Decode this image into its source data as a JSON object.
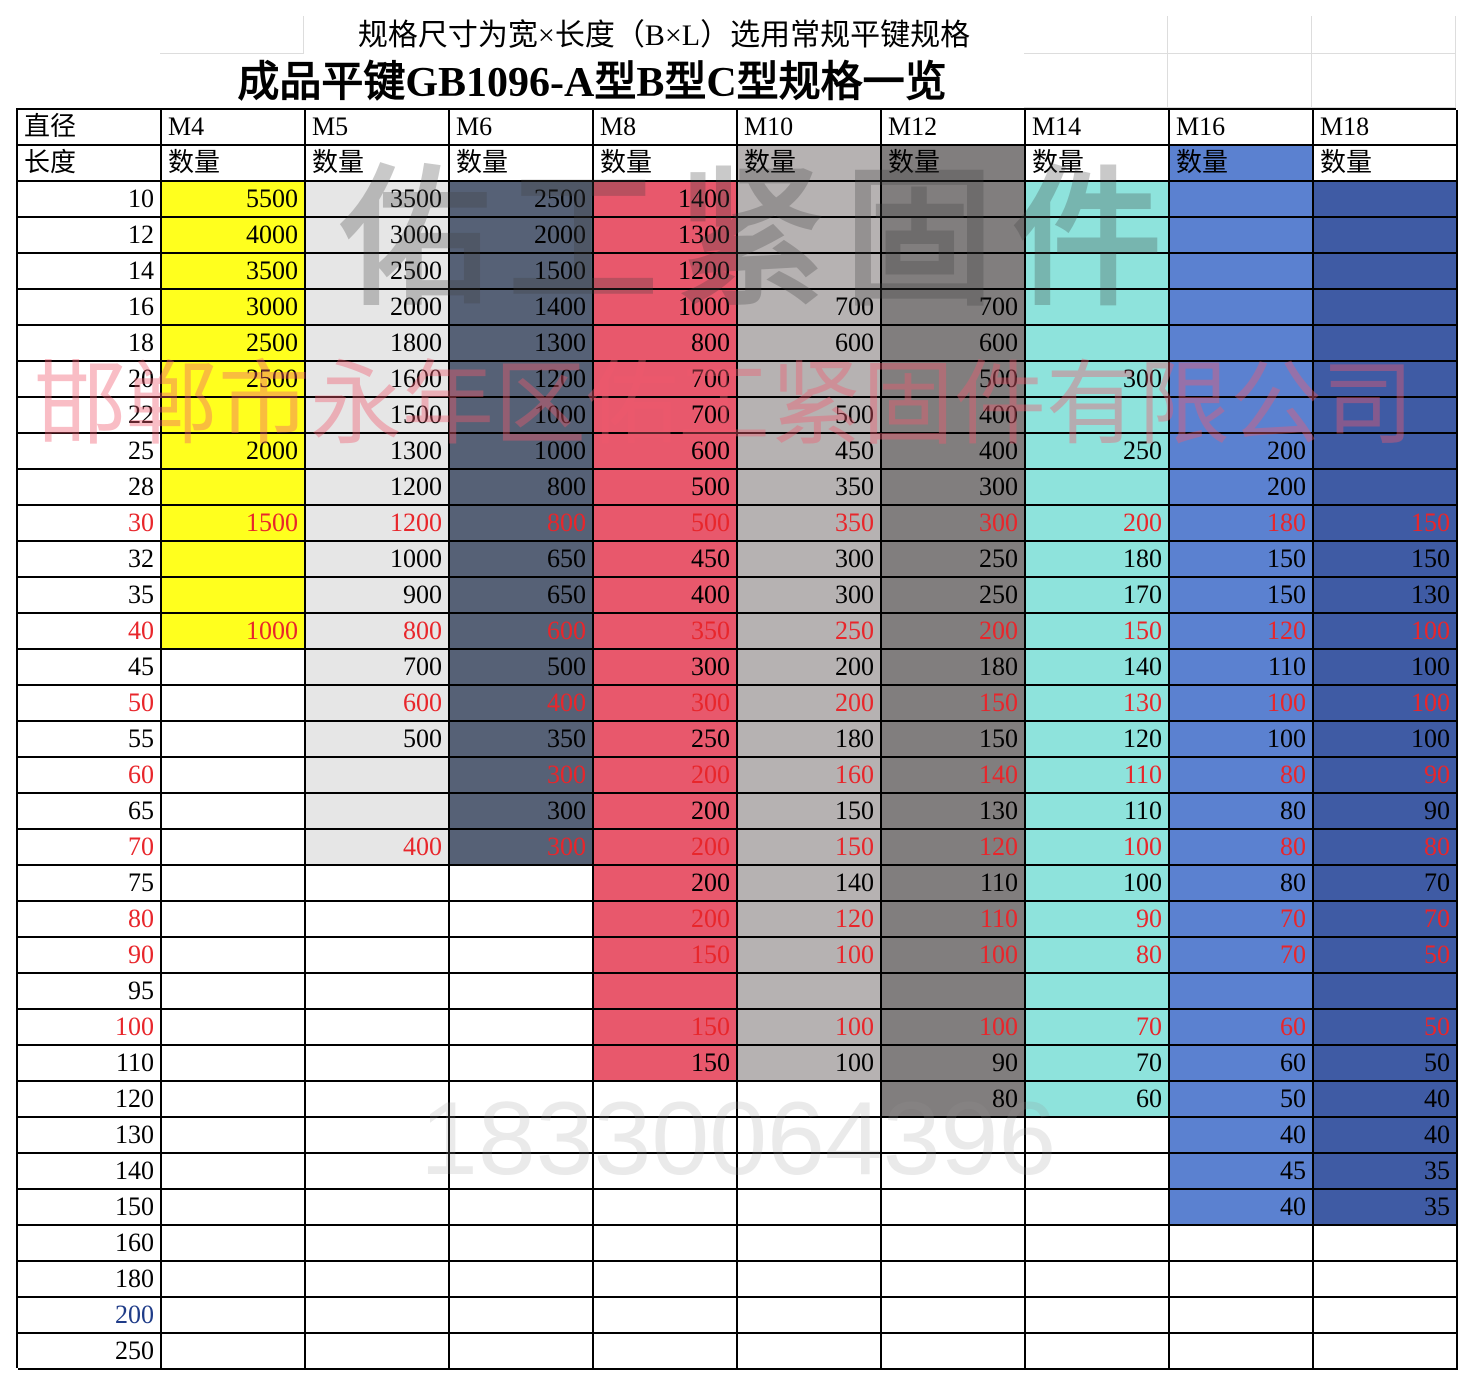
{
  "header": {
    "note": "规格尺寸为宽×长度（B×L）选用常规平键规格",
    "title": "成品平键GB1096-A型B型C型规格一览"
  },
  "table": {
    "row_header_1": "直径",
    "row_header_2": "长度",
    "lengths": [
      10,
      12,
      14,
      16,
      18,
      20,
      22,
      25,
      28,
      30,
      32,
      35,
      40,
      45,
      50,
      55,
      60,
      65,
      70,
      75,
      80,
      90,
      95,
      100,
      110,
      120,
      130,
      140,
      150,
      160,
      180,
      200,
      250
    ],
    "row_text_colors": [
      "#000",
      "#000",
      "#000",
      "#000",
      "#000",
      "#000",
      "#000",
      "#000",
      "#000",
      "#e8262b",
      "#000",
      "#000",
      "#e8262b",
      "#000",
      "#e8262b",
      "#000",
      "#e8262b",
      "#000",
      "#e8262b",
      "#000",
      "#e8262b",
      "#e8262b",
      "#000",
      "#e8262b",
      "#000",
      "#000",
      "#000",
      "#000",
      "#000",
      "#000",
      "#000",
      "#1f3c88",
      "#000"
    ],
    "columns": [
      {
        "size": "M4",
        "qty_label": "数量",
        "fill": "#ffff1e",
        "values": [
          5500,
          4000,
          3500,
          3000,
          2500,
          2500,
          null,
          2000,
          null,
          1500,
          null,
          null,
          1000,
          null,
          null,
          null,
          null,
          null,
          null,
          null,
          null,
          null,
          null,
          null,
          null,
          null,
          null,
          null,
          null,
          null,
          null,
          null,
          null
        ]
      },
      {
        "size": "M5",
        "qty_label": "数量",
        "fill": "#e6e6e6",
        "values": [
          3500,
          3000,
          2500,
          2000,
          1800,
          1600,
          1500,
          1300,
          1200,
          1200,
          1000,
          900,
          800,
          700,
          600,
          500,
          null,
          null,
          400,
          null,
          null,
          null,
          null,
          null,
          null,
          null,
          null,
          null,
          null,
          null,
          null,
          null,
          null
        ]
      },
      {
        "size": "M6",
        "qty_label": "数量",
        "fill": "#566176",
        "values": [
          2500,
          2000,
          1500,
          1400,
          1300,
          1200,
          1000,
          1000,
          800,
          800,
          650,
          650,
          600,
          500,
          400,
          350,
          300,
          300,
          300,
          null,
          null,
          null,
          null,
          null,
          null,
          null,
          null,
          null,
          null,
          null,
          null,
          null,
          null
        ]
      },
      {
        "size": "M8",
        "qty_label": "数量",
        "fill": "#e8586c",
        "values": [
          1400,
          1300,
          1200,
          1000,
          800,
          700,
          700,
          600,
          500,
          500,
          450,
          400,
          350,
          300,
          300,
          250,
          200,
          200,
          200,
          200,
          200,
          150,
          null,
          150,
          150,
          null,
          null,
          null,
          null,
          null,
          null,
          null,
          null
        ]
      },
      {
        "size": "M10",
        "qty_label": "数量",
        "fill": "#b6b2b2",
        "values": [
          null,
          null,
          null,
          700,
          600,
          null,
          500,
          450,
          350,
          350,
          300,
          300,
          250,
          200,
          200,
          180,
          160,
          150,
          150,
          140,
          120,
          100,
          null,
          100,
          100,
          null,
          null,
          null,
          null,
          null,
          null,
          null,
          null
        ]
      },
      {
        "size": "M12",
        "qty_label": "数量",
        "fill": "#817e7e",
        "values": [
          null,
          null,
          null,
          700,
          600,
          500,
          400,
          400,
          300,
          300,
          250,
          250,
          200,
          180,
          150,
          150,
          140,
          130,
          120,
          110,
          110,
          100,
          null,
          100,
          90,
          80,
          null,
          null,
          null,
          null,
          null,
          null,
          null
        ]
      },
      {
        "size": "M14",
        "qty_label": "数量",
        "fill": "#8ee3dc",
        "values": [
          null,
          null,
          null,
          null,
          null,
          300,
          null,
          250,
          null,
          200,
          180,
          170,
          150,
          140,
          130,
          120,
          110,
          110,
          100,
          100,
          90,
          80,
          null,
          70,
          70,
          60,
          null,
          null,
          null,
          null,
          null,
          null,
          null
        ]
      },
      {
        "size": "M16",
        "qty_label": "数量",
        "fill": "#5b81d0",
        "values": [
          null,
          null,
          null,
          null,
          null,
          null,
          null,
          200,
          200,
          180,
          150,
          150,
          120,
          110,
          100,
          100,
          80,
          80,
          80,
          80,
          70,
          70,
          null,
          60,
          60,
          50,
          40,
          45,
          40,
          null,
          null,
          null,
          null
        ]
      },
      {
        "size": "M18",
        "qty_label": "数量",
        "fill": "#3f5ba4",
        "values": [
          null,
          null,
          null,
          null,
          null,
          null,
          null,
          null,
          null,
          150,
          150,
          130,
          100,
          100,
          100,
          100,
          90,
          90,
          80,
          70,
          70,
          50,
          null,
          50,
          50,
          40,
          40,
          35,
          35,
          null,
          null,
          null,
          null
        ]
      }
    ]
  },
  "watermarks": [
    "佑工紧固件",
    "邯郸市永年区佑工紧固件有限公司",
    "18330064396"
  ]
}
